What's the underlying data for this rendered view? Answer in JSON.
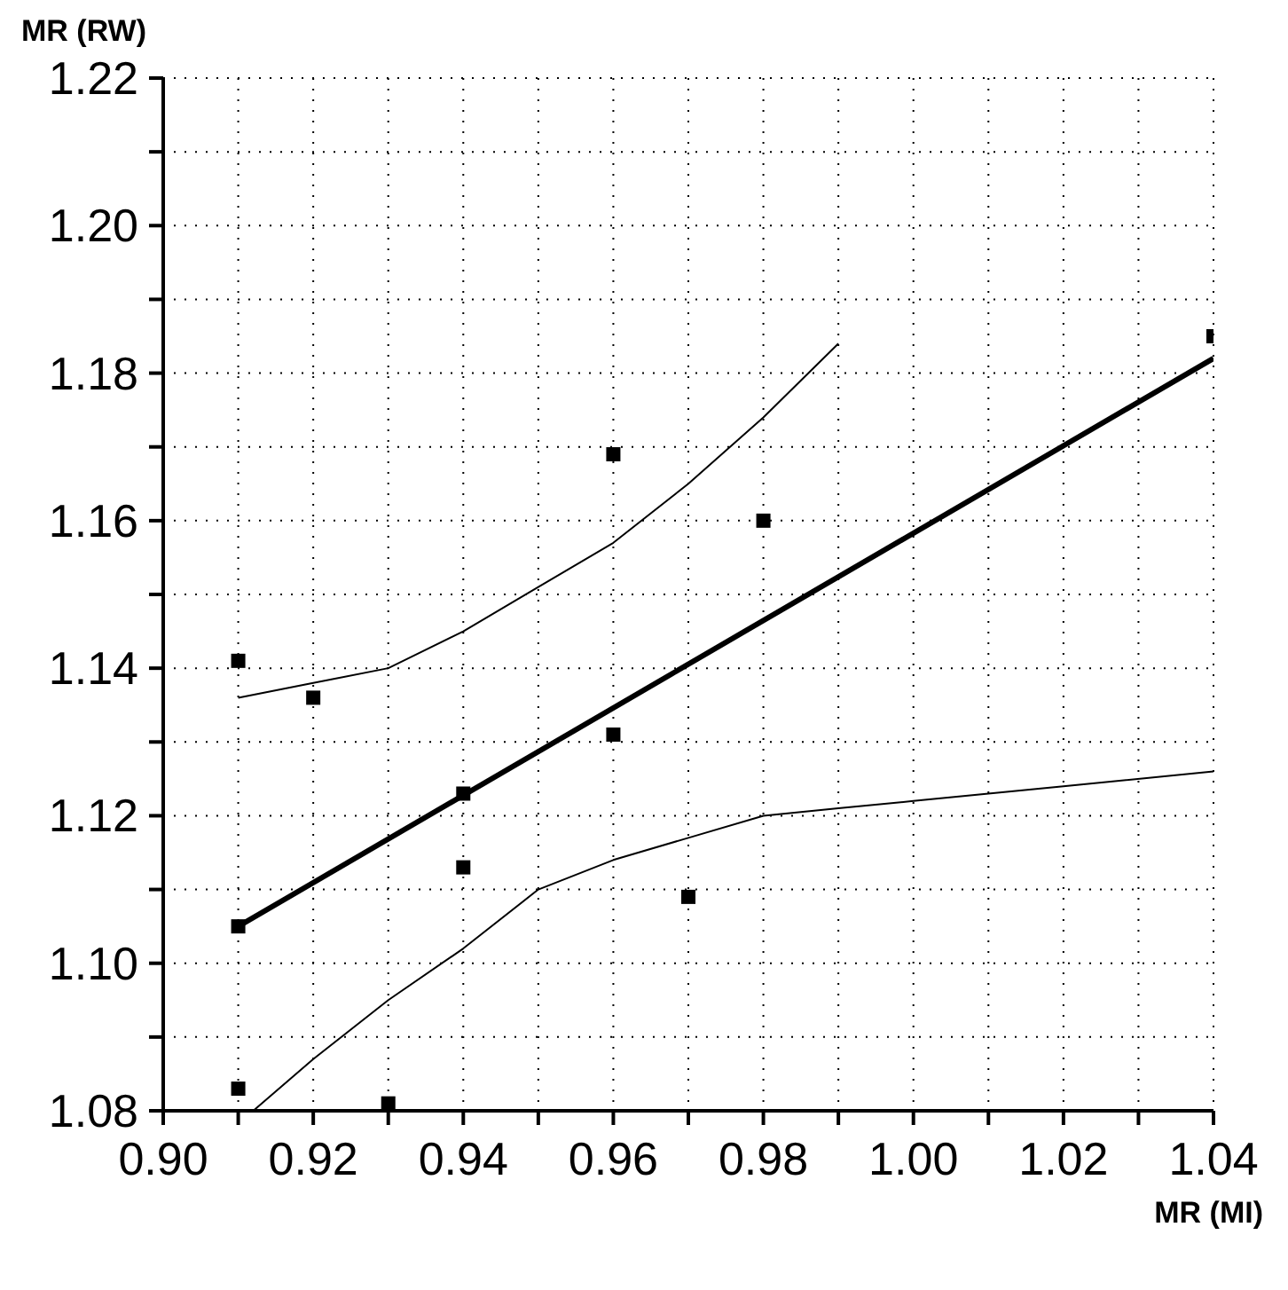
{
  "chart_data": {
    "type": "scatter",
    "xlabel": "MR (MI)",
    "ylabel": "MR (RW)",
    "xlim": [
      0.9,
      1.04
    ],
    "ylim": [
      1.08,
      1.22
    ],
    "xticks": [
      {
        "value": 0.9,
        "label": "0.90"
      },
      {
        "value": 0.91,
        "label": null
      },
      {
        "value": 0.92,
        "label": "0.92"
      },
      {
        "value": 0.93,
        "label": null
      },
      {
        "value": 0.94,
        "label": "0.94"
      },
      {
        "value": 0.95,
        "label": null
      },
      {
        "value": 0.96,
        "label": "0.96"
      },
      {
        "value": 0.97,
        "label": null
      },
      {
        "value": 0.98,
        "label": "0.98"
      },
      {
        "value": 0.99,
        "label": null
      },
      {
        "value": 1.0,
        "label": "1.00"
      },
      {
        "value": 1.01,
        "label": null
      },
      {
        "value": 1.02,
        "label": "1.02"
      },
      {
        "value": 1.03,
        "label": null
      },
      {
        "value": 1.04,
        "label": "1.04"
      }
    ],
    "yticks": [
      {
        "value": 1.08,
        "label": "1.08"
      },
      {
        "value": 1.09,
        "label": null
      },
      {
        "value": 1.1,
        "label": "1.10"
      },
      {
        "value": 1.11,
        "label": null
      },
      {
        "value": 1.12,
        "label": "1.12"
      },
      {
        "value": 1.13,
        "label": null
      },
      {
        "value": 1.14,
        "label": "1.14"
      },
      {
        "value": 1.15,
        "label": null
      },
      {
        "value": 1.16,
        "label": "1.16"
      },
      {
        "value": 1.17,
        "label": null
      },
      {
        "value": 1.18,
        "label": "1.18"
      },
      {
        "value": 1.19,
        "label": null
      },
      {
        "value": 1.2,
        "label": "1.20"
      },
      {
        "value": 1.21,
        "label": null
      },
      {
        "value": 1.22,
        "label": "1.22"
      }
    ],
    "grid": true,
    "line_style": "solid",
    "series": [
      {
        "marker": "square",
        "color": "#000000",
        "x": [
          0.91,
          0.92,
          0.91,
          0.91,
          0.93,
          0.94,
          0.94,
          0.96,
          0.96,
          0.97,
          0.98,
          1.04
        ],
        "values": [
          1.141,
          1.136,
          1.105,
          1.083,
          1.081,
          1.123,
          1.113,
          1.131,
          1.169,
          1.109,
          1.16,
          1.185
        ]
      },
      {
        "type": "line",
        "color": "#000000",
        "x": [
          0.91,
          1.04
        ],
        "values": [
          1.105,
          1.182
        ]
      },
      {
        "type": "line",
        "color": "#000000",
        "x": [
          0.91,
          0.92,
          0.93,
          0.94,
          0.95,
          0.96,
          0.97,
          0.98,
          0.99
        ],
        "values": [
          1.136,
          1.138,
          1.14,
          1.145,
          1.151,
          1.157,
          1.165,
          1.174,
          1.184
        ]
      },
      {
        "type": "line",
        "color": "#000000",
        "x": [
          0.912,
          0.92,
          0.93,
          0.94,
          0.95,
          0.96,
          0.97,
          0.98,
          0.99,
          1.0,
          1.02,
          1.04
        ],
        "values": [
          1.08,
          1.087,
          1.095,
          1.102,
          1.11,
          1.114,
          1.117,
          1.12,
          1.121,
          1.122,
          1.124,
          1.126
        ]
      }
    ]
  }
}
